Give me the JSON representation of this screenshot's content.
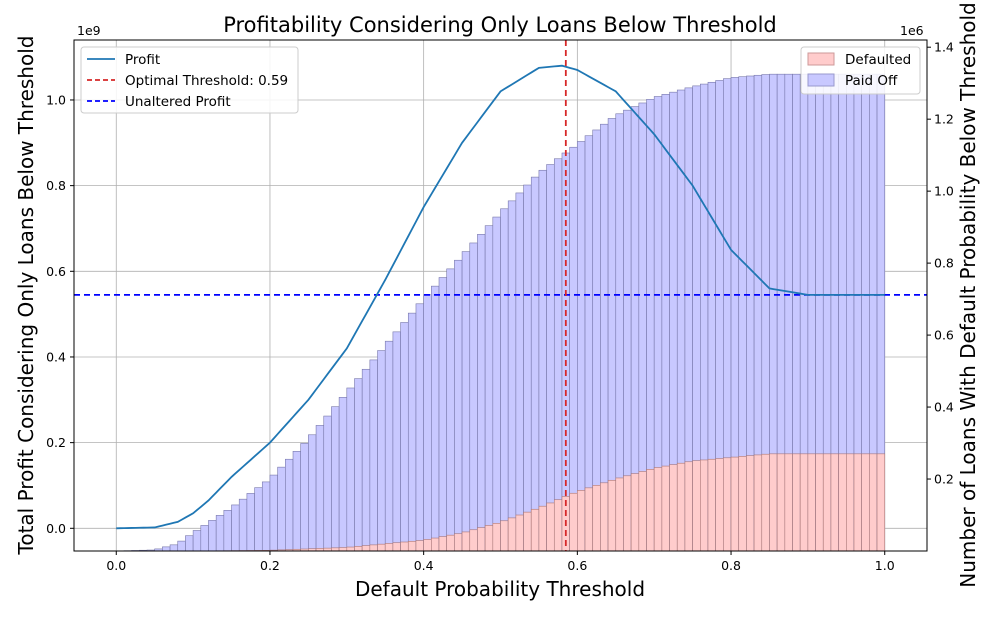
{
  "chart_data": {
    "type": "bar+line",
    "title": "Profitability Considering Only Loans Below Threshold",
    "xlabel": "Default Probability Threshold",
    "ylabel_left": "Total Profit Considering Only Loans Below Threshold",
    "ylabel_right": "Number of Loans With Default Probability Below Threshold",
    "left_scale_label": "1e9",
    "right_scale_label": "1e6",
    "xlim": [
      -0.055,
      1.055
    ],
    "ylim_left": [
      -0.053,
      1.14
    ],
    "ylim_right": [
      0,
      1.42
    ],
    "x_ticks": [
      "0.0",
      "0.2",
      "0.4",
      "0.6",
      "0.8",
      "1.0"
    ],
    "y_left_ticks": [
      "0.0",
      "0.2",
      "0.4",
      "0.6",
      "0.8",
      "1.0"
    ],
    "y_right_ticks": [
      "0.2",
      "0.4",
      "0.6",
      "0.8",
      "1.0",
      "1.2",
      "1.4"
    ],
    "grid": true,
    "series": [
      {
        "name": "Profit",
        "kind": "line",
        "axis": "left",
        "color": "#1f77b4",
        "x": [
          0.0,
          0.05,
          0.08,
          0.1,
          0.12,
          0.15,
          0.2,
          0.25,
          0.3,
          0.35,
          0.4,
          0.45,
          0.5,
          0.55,
          0.58,
          0.6,
          0.65,
          0.7,
          0.75,
          0.8,
          0.85,
          0.9,
          0.95,
          1.0
        ],
        "y": [
          0.0,
          0.002,
          0.015,
          0.035,
          0.065,
          0.12,
          0.2,
          0.3,
          0.42,
          0.58,
          0.75,
          0.9,
          1.02,
          1.075,
          1.08,
          1.07,
          1.02,
          0.92,
          0.8,
          0.65,
          0.56,
          0.545,
          0.545,
          0.545
        ]
      },
      {
        "name": "Optimal Threshold: 0.59",
        "kind": "vline",
        "x": 0.585,
        "color": "#d62728"
      },
      {
        "name": "Unaltered Profit",
        "kind": "hline",
        "axis": "left",
        "y": 0.545,
        "color": "#0000ff"
      },
      {
        "name": "Paid Off",
        "kind": "bar",
        "axis": "right",
        "color": "#c8c8ff",
        "x": [
          0.0,
          0.05,
          0.08,
          0.1,
          0.15,
          0.2,
          0.25,
          0.3,
          0.35,
          0.4,
          0.45,
          0.5,
          0.55,
          0.6,
          0.65,
          0.7,
          0.75,
          0.8,
          0.85,
          0.9,
          0.95,
          1.0
        ],
        "y": [
          0.0,
          0.003,
          0.02,
          0.05,
          0.12,
          0.2,
          0.31,
          0.44,
          0.57,
          0.7,
          0.82,
          0.94,
          1.05,
          1.13,
          1.21,
          1.26,
          1.29,
          1.315,
          1.325,
          1.325,
          1.325,
          1.325
        ]
      },
      {
        "name": "Defaulted",
        "kind": "bar",
        "axis": "right",
        "color": "#ffcccc",
        "x": [
          0.0,
          0.1,
          0.2,
          0.3,
          0.4,
          0.45,
          0.5,
          0.55,
          0.6,
          0.65,
          0.7,
          0.75,
          0.8,
          0.85,
          0.9,
          1.0
        ],
        "y": [
          0.0,
          0.0,
          0.002,
          0.01,
          0.03,
          0.05,
          0.08,
          0.12,
          0.165,
          0.2,
          0.23,
          0.25,
          0.26,
          0.27,
          0.27,
          0.27
        ]
      }
    ],
    "legend_left": {
      "position": "upper left",
      "entries": [
        "Profit",
        "Optimal Threshold: 0.59",
        "Unaltered Profit"
      ]
    },
    "legend_right": {
      "position": "upper right",
      "entries": [
        "Defaulted",
        "Paid Off"
      ]
    }
  }
}
